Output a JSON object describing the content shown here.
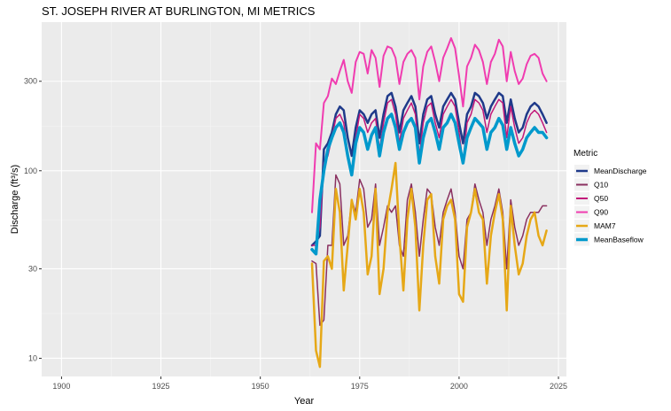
{
  "chart_data": {
    "type": "line",
    "title": "ST. JOSEPH RIVER AT BURLINGTON, MI  METRICS",
    "xlabel": "Year",
    "ylabel": "Discharge (ft³/s)",
    "y_scale": "log10",
    "xlim": [
      1895,
      2027
    ],
    "ylim": [
      8,
      620
    ],
    "x_ticks": [
      1900,
      1925,
      1950,
      1975,
      2000,
      2025
    ],
    "y_ticks": [
      10,
      30,
      100,
      300
    ],
    "grid": true,
    "background": "#EBEBEB",
    "legend": {
      "title": "Metric",
      "position": "right"
    },
    "x": [
      1963,
      1964,
      1965,
      1966,
      1967,
      1968,
      1969,
      1970,
      1971,
      1972,
      1973,
      1974,
      1975,
      1976,
      1977,
      1978,
      1979,
      1980,
      1981,
      1982,
      1983,
      1984,
      1985,
      1986,
      1987,
      1988,
      1989,
      1990,
      1991,
      1992,
      1993,
      1994,
      1995,
      1996,
      1997,
      1998,
      1999,
      2000,
      2001,
      2002,
      2003,
      2004,
      2005,
      2006,
      2007,
      2008,
      2009,
      2010,
      2011,
      2012,
      2013,
      2014,
      2015,
      2016,
      2017,
      2018,
      2019,
      2020,
      2021,
      2022
    ],
    "series": [
      {
        "name": "MeanDischarge",
        "color": "#1F3A8A",
        "width": 2.5,
        "values": [
          40,
          42,
          45,
          130,
          140,
          160,
          200,
          220,
          210,
          150,
          120,
          170,
          210,
          200,
          180,
          200,
          210,
          150,
          200,
          250,
          260,
          220,
          160,
          210,
          230,
          250,
          220,
          140,
          200,
          240,
          250,
          200,
          170,
          220,
          240,
          260,
          240,
          180,
          140,
          200,
          220,
          260,
          250,
          230,
          190,
          220,
          240,
          260,
          250,
          180,
          240,
          190,
          160,
          170,
          200,
          220,
          230,
          220,
          200,
          180
        ]
      },
      {
        "name": "Q10",
        "color": "#8A3060",
        "width": 1.5,
        "values": [
          33,
          32,
          15,
          16,
          40,
          40,
          95,
          85,
          40,
          45,
          70,
          60,
          90,
          80,
          50,
          55,
          85,
          40,
          50,
          65,
          60,
          65,
          40,
          35,
          70,
          85,
          60,
          35,
          55,
          80,
          75,
          50,
          40,
          60,
          70,
          80,
          60,
          35,
          30,
          55,
          60,
          85,
          70,
          60,
          40,
          55,
          65,
          80,
          60,
          30,
          70,
          50,
          40,
          45,
          55,
          60,
          60,
          60,
          65,
          65
        ]
      },
      {
        "name": "Q50",
        "color": "#C2187A",
        "width": 1.5,
        "values": [
          40,
          40,
          50,
          110,
          120,
          150,
          190,
          200,
          180,
          120,
          100,
          150,
          200,
          190,
          160,
          180,
          190,
          130,
          180,
          230,
          240,
          200,
          140,
          190,
          210,
          230,
          200,
          120,
          180,
          220,
          230,
          180,
          150,
          200,
          220,
          240,
          220,
          160,
          110,
          180,
          200,
          240,
          230,
          210,
          160,
          200,
          220,
          240,
          230,
          150,
          220,
          170,
          140,
          150,
          180,
          200,
          210,
          200,
          180,
          160
        ]
      },
      {
        "name": "Q90",
        "color": "#F03CB0",
        "width": 2,
        "values": [
          60,
          140,
          130,
          230,
          250,
          310,
          290,
          340,
          390,
          300,
          260,
          380,
          430,
          420,
          330,
          440,
          400,
          280,
          410,
          460,
          450,
          400,
          290,
          380,
          420,
          440,
          400,
          240,
          360,
          430,
          460,
          380,
          300,
          400,
          450,
          510,
          450,
          320,
          220,
          360,
          400,
          470,
          440,
          380,
          290,
          380,
          420,
          500,
          460,
          300,
          430,
          340,
          290,
          310,
          370,
          410,
          420,
          400,
          330,
          300
        ]
      },
      {
        "name": "MAM7",
        "color": "#E6A817",
        "width": 2.5,
        "values": [
          32,
          11,
          9,
          33,
          35,
          30,
          80,
          60,
          23,
          40,
          70,
          55,
          80,
          60,
          28,
          35,
          80,
          22,
          30,
          60,
          80,
          110,
          45,
          23,
          55,
          80,
          50,
          18,
          40,
          70,
          75,
          35,
          25,
          55,
          65,
          70,
          55,
          22,
          20,
          50,
          60,
          80,
          60,
          55,
          25,
          45,
          60,
          75,
          55,
          18,
          65,
          40,
          28,
          32,
          45,
          55,
          60,
          45,
          40,
          48
        ]
      },
      {
        "name": "MeanBaseflow",
        "color": "#0099CC",
        "width": 3.5,
        "values": [
          38,
          36,
          70,
          100,
          130,
          150,
          170,
          180,
          160,
          120,
          95,
          140,
          170,
          160,
          130,
          155,
          170,
          120,
          160,
          190,
          200,
          170,
          130,
          160,
          180,
          190,
          170,
          110,
          150,
          180,
          190,
          160,
          130,
          170,
          180,
          200,
          180,
          140,
          110,
          150,
          170,
          190,
          180,
          170,
          130,
          160,
          170,
          190,
          175,
          130,
          170,
          140,
          120,
          130,
          150,
          160,
          170,
          160,
          160,
          150
        ]
      }
    ]
  }
}
